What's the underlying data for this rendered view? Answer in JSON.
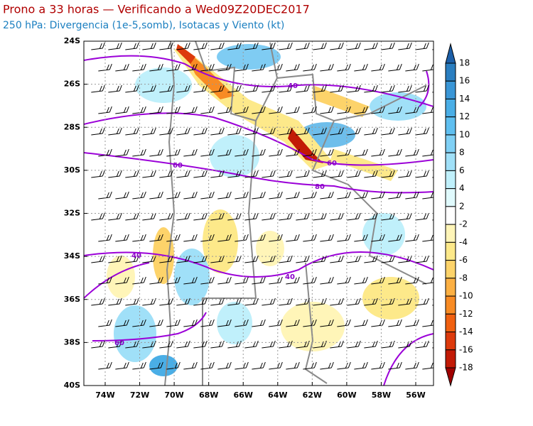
{
  "header": {
    "title": "Prono a 33 horas — Verificando a Wed09Z20DEC2017",
    "subtitle": "250 hPa: Divergencia (1e-5,somb), Isotacas y Viento (kt)"
  },
  "map": {
    "lat_labels": [
      "24S",
      "26S",
      "28S",
      "30S",
      "32S",
      "34S",
      "36S",
      "38S",
      "40S"
    ],
    "lon_labels": [
      "74W",
      "72W",
      "70W",
      "68W",
      "66W",
      "64W",
      "62W",
      "60W",
      "58W",
      "56W"
    ],
    "contour_labels": [
      "40",
      "60",
      "60",
      "80",
      "40",
      "40",
      "60"
    ]
  },
  "colorbar": {
    "labels": [
      "18",
      "16",
      "14",
      "12",
      "10",
      "8",
      "6",
      "4",
      "2",
      "-2",
      "-4",
      "-6",
      "-8",
      "-10",
      "-12",
      "-14",
      "-16",
      "-18"
    ],
    "colors": [
      "#1c5fa8",
      "#2a7ec0",
      "#3a96d6",
      "#4aaee6",
      "#5fbff0",
      "#80d0f5",
      "#a0e0f8",
      "#c0f0fb",
      "#e0fafd",
      "#ffffff",
      "#fff5b8",
      "#fde98a",
      "#fdd36a",
      "#fcb043",
      "#f88b24",
      "#f06010",
      "#dd3a0c",
      "#c21a06",
      "#a00000"
    ]
  }
}
